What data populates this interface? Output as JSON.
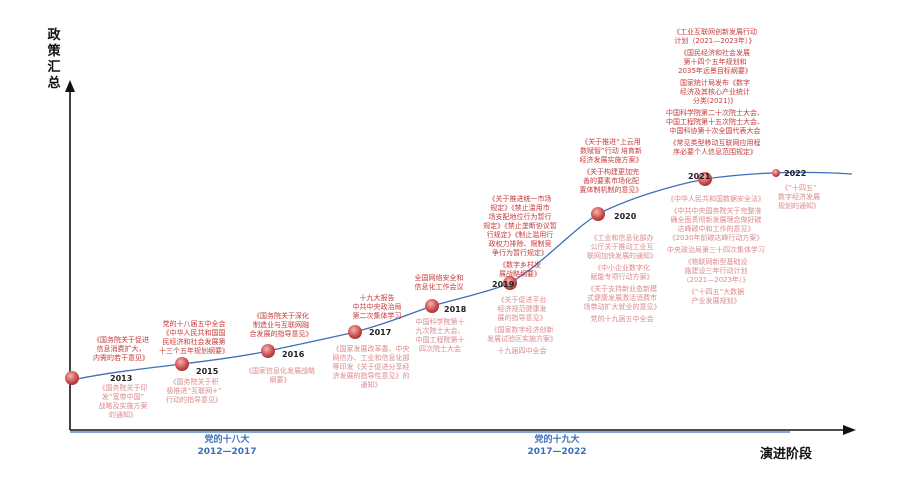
{
  "axes": {
    "y_title": "政策汇总",
    "x_title": "演进阶段"
  },
  "periods": [
    {
      "title": "党的十八大",
      "range": "2012—2017"
    },
    {
      "title": "党的十九大",
      "range": "2017—2022"
    }
  ],
  "milestones": [
    {
      "year": "2013",
      "above": [
        "《国务院关于促进",
        "信息消费扩大，",
        "内需的若干意见》"
      ],
      "below": [
        "《国务院关于印",
        "发“宽带中国”",
        "战略及实施方案",
        "的通知》"
      ]
    },
    {
      "year": "2015",
      "above": [
        "党的十八届五中全会",
        "《中华人民共和国国",
        "民经济和社会发展第",
        "十三个五年规划纲要》"
      ],
      "below": [
        "《国务院关于积",
        "极推进“互联网+”",
        "行动的指导意见》"
      ]
    },
    {
      "year": "2016",
      "above": [
        "《国务院关于深化",
        "制造业与互联网融",
        "合发展的指导意见》"
      ],
      "below": [
        "《国家信息化发展战略",
        "纲要》"
      ]
    },
    {
      "year": "2017",
      "above": [
        "十九大报告",
        "中共中央政治局",
        "第二次集体学习"
      ],
      "below": [
        "《国家发展改革委、中央",
        "网信办、工业和信息化部",
        "等印发《关于促进分享经",
        "济发展的指导性意见》的",
        "通知》"
      ]
    },
    {
      "year": "2018",
      "above": [
        "全国网络安全和",
        "信息化工作会议"
      ],
      "below": [
        "中国科学院第十",
        "九次院士大会、",
        "中国工程院第十",
        "四次院士大会"
      ]
    },
    {
      "year": "2019",
      "above": [
        "《关于推进统一市场",
        "规定》《禁止滥用市",
        "场支配地位行为暂行",
        "规定》《禁止垄断协议暂",
        "行规定》《制止滥用行",
        "政权力排除、限制竞",
        "争行为暂行规定》",
        "",
        "《数字乡村发",
        "展战略纲要》"
      ],
      "below": [
        "《关于促进平台",
        "经济规范健康发",
        "展的指导意见》",
        "",
        "《国家数字经济创新",
        "发展试验区实施方案》",
        "",
        "十九届四中全会"
      ]
    },
    {
      "year": "2020",
      "above": [
        "《关于推进“上云用",
        "数赋智”行动 培育新",
        "经济发展实施方案》",
        "",
        "《关于构建更加完",
        "善的要素市场化配",
        "置体制机制的意见》"
      ],
      "below": [
        "《工业和信息化部办",
        "公厅关于推动工业互",
        "联网加快发展的通知》",
        "",
        "《中小企业数字化",
        "赋能专项行动方案》",
        "",
        "《关于支持新业态新模",
        "式健康发展激活消费市",
        "场带动扩大就业的意见》",
        "",
        "党的十九届五中全会"
      ]
    },
    {
      "year": "2021",
      "above": [
        "《工业互联网创新发展行动",
        "计划（2021—2023年）》",
        "",
        "《国民经济和社会发展",
        "第十四个五年规划和",
        "2035年远景目标纲要》",
        "",
        "国家统计局发布《数字",
        "经济及其核心产业统计",
        "分类(2021)》",
        "",
        "中国科学院第二十次院士大会、",
        "中国工程院第十五次院士大会、",
        "中国科协第十次全国代表大会",
        "",
        "《常见类型移动互联网应用程",
        "序必要个人信息范围规定》"
      ],
      "below": [
        "《中华人民共和国数据安全法》",
        "",
        "《中共中央国务院关于完整准",
        "确全面贯彻新发展理念做好碳",
        "达峰碳中和工作的意见》",
        "《2030年前碳达峰行动方案》",
        "",
        "中央政治局第三十四次集体学习",
        "",
        "《物联网新型基础设",
        "施建设三年行动计划",
        "（2021—2023年）》",
        "",
        "《“十四五”大数据",
        "产业发展规划》"
      ]
    },
    {
      "year": "2022",
      "above": [],
      "below": [
        "《“十四五”",
        "数字经济发展",
        "规划的通知》"
      ]
    }
  ]
}
